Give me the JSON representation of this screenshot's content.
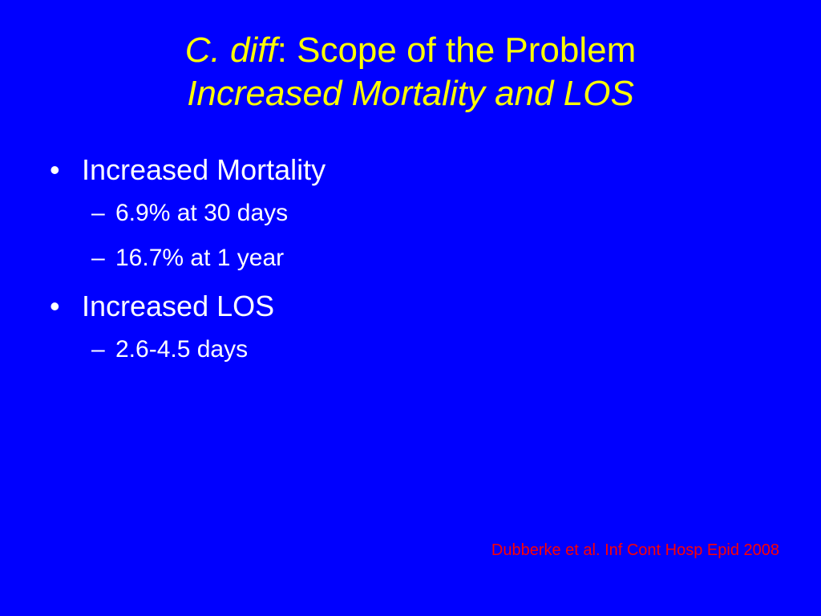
{
  "title": {
    "line1_italic": "C. diff",
    "line1_rest": ": Scope of the Problem",
    "line2": "Increased Mortality and LOS"
  },
  "bullets": [
    {
      "text": "Increased Mortality",
      "sub": [
        "6.9% at 30 days",
        "16.7% at 1 year"
      ]
    },
    {
      "text": "Increased LOS",
      "sub": [
        "2.6-4.5 days"
      ]
    }
  ],
  "citation": "Dubberke et al. Inf Cont Hosp Epid 2008",
  "colors": {
    "background": "#0000ff",
    "title": "#ffff00",
    "body": "#ffffff",
    "citation": "#ff0000"
  }
}
